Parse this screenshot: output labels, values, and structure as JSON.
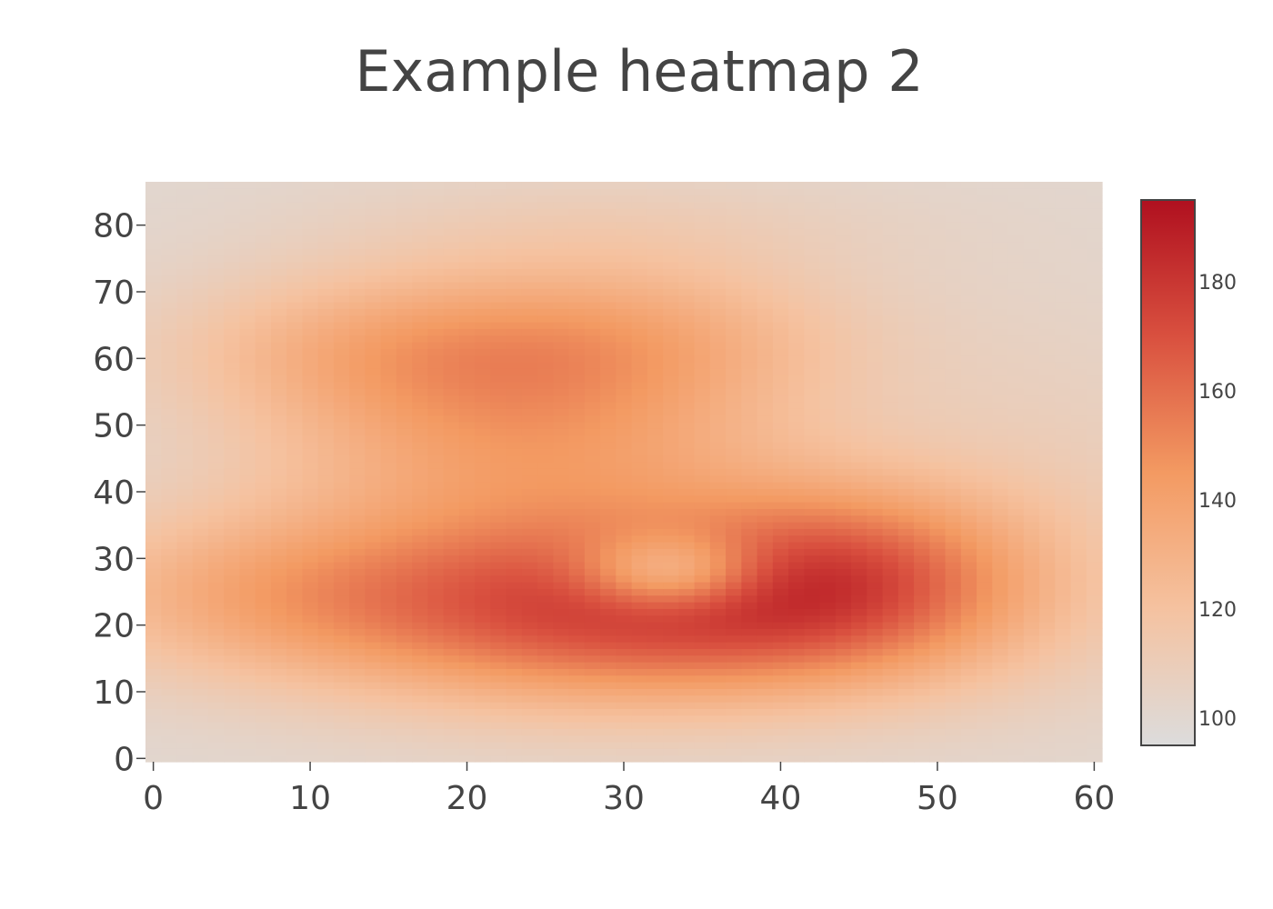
{
  "chart_data": {
    "type": "heatmap",
    "title": "Example heatmap 2",
    "xlabel": "",
    "ylabel": "",
    "x_range": [
      -0.5,
      60.5
    ],
    "y_range": [
      -0.5,
      86.5
    ],
    "x_ticks": [
      0,
      10,
      20,
      30,
      40,
      50,
      60
    ],
    "y_ticks": [
      0,
      10,
      20,
      30,
      40,
      50,
      60,
      70,
      80
    ],
    "colorscale": {
      "min": 95,
      "max": 195,
      "ticks": [
        100,
        120,
        140,
        160,
        180
      ],
      "stops": [
        [
          0.0,
          "#dcdcdc"
        ],
        [
          0.25,
          "#f5c2a0"
        ],
        [
          0.5,
          "#f39a62"
        ],
        [
          0.75,
          "#d9503f"
        ],
        [
          1.0,
          "#b0101f"
        ]
      ]
    },
    "grid": {
      "cols": 61,
      "rows": 87,
      "background_level": 100,
      "components": [
        {
          "x": 24,
          "y": 50,
          "sx": 12,
          "sy": 14,
          "amp": 40
        },
        {
          "x": 14,
          "y": 62,
          "sx": 10,
          "sy": 8,
          "amp": 20
        },
        {
          "x": 32,
          "y": 64,
          "sx": 10,
          "sy": 8,
          "amp": 18
        },
        {
          "x": 6,
          "y": 25,
          "sx": 10,
          "sy": 9,
          "amp": 24
        },
        {
          "x": 30,
          "y": 22,
          "sx": 14,
          "sy": 10,
          "amp": 70
        },
        {
          "x": 45,
          "y": 28,
          "sx": 8,
          "sy": 10,
          "amp": 42
        },
        {
          "x": 33,
          "y": 28,
          "sx": 4,
          "sy": 4,
          "amp": -45
        },
        {
          "x": 30,
          "y": 80,
          "sx": 14,
          "sy": 6,
          "amp": 8
        },
        {
          "x": 58,
          "y": 40,
          "sx": 8,
          "sy": 20,
          "amp": 8
        }
      ]
    }
  }
}
